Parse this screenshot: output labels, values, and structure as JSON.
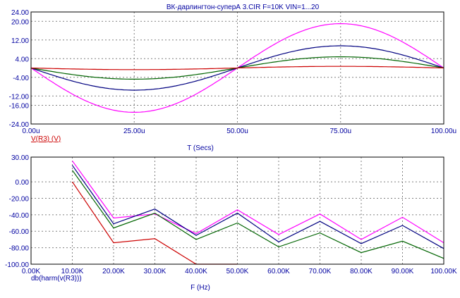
{
  "window": {
    "title": "ВК-дарлингтон-суперА 3.CIR F=10K VIN=1...20"
  },
  "colors": {
    "axis_text": "#0000a0",
    "grid": "#808080",
    "frame": "#000000",
    "trace_label_time": "#cc0000",
    "trace_label_freq": "#0000a0"
  },
  "chart_data": [
    {
      "type": "line",
      "title": "ВК-дарлингтон-суперА 3.CIR F=10K VIN=1...20",
      "xlabel": "T (Secs)",
      "ylabel": "",
      "trace_label": "V(R3) (V)",
      "xlim": [
        0,
        100
      ],
      "ylim": [
        -24,
        24
      ],
      "x_ticks": [
        "0.00u",
        "25.00u",
        "50.00u",
        "75.00u",
        "100.00u"
      ],
      "x_tick_values": [
        0,
        25,
        50,
        75,
        100
      ],
      "y_ticks": [
        "24.00",
        "20.00",
        "12.00",
        "4.00",
        "-4.00",
        "-12.00",
        "-16.00",
        "-24.00"
      ],
      "y_tick_values": [
        24,
        20,
        12,
        4,
        -4,
        -12,
        -16,
        -24
      ],
      "grid": true,
      "series": [
        {
          "color": "#ff00ff",
          "amplitude": 19.0,
          "x_unit": "us"
        },
        {
          "color": "#000080",
          "amplitude": 9.5,
          "x_unit": "us"
        },
        {
          "color": "#006400",
          "amplitude": 4.8,
          "x_unit": "us"
        },
        {
          "color": "#cc0000",
          "amplitude": 0.7,
          "x_unit": "us"
        }
      ]
    },
    {
      "type": "line",
      "title": "",
      "xlabel": "F (Hz)",
      "ylabel": "",
      "trace_label": "db(harm(v(R3)))",
      "xlim": [
        0,
        100
      ],
      "ylim": [
        -100,
        30
      ],
      "x_ticks": [
        "0.00K",
        "10.00K",
        "20.00K",
        "30.00K",
        "40.00K",
        "50.00K",
        "60.00K",
        "70.00K",
        "80.00K",
        "90.00K",
        "100.00K"
      ],
      "x_tick_values": [
        0,
        10,
        20,
        30,
        40,
        50,
        60,
        70,
        80,
        90,
        100
      ],
      "y_ticks": [
        "30.00",
        "0.00",
        "-20.00",
        "-40.00",
        "-60.00",
        "-80.00",
        "-100.00"
      ],
      "y_tick_values": [
        30,
        0,
        -20,
        -40,
        -60,
        -80,
        -100
      ],
      "grid": true,
      "series": [
        {
          "color": "#ff00ff",
          "x": [
            10,
            20,
            30,
            40,
            50,
            60,
            70,
            80,
            90,
            100
          ],
          "values": [
            25.5,
            -44,
            -39,
            -63,
            -34,
            -64,
            -39,
            -70,
            -43,
            -74
          ]
        },
        {
          "color": "#000080",
          "x": [
            10,
            20,
            30,
            40,
            50,
            60,
            70,
            80,
            90,
            100
          ],
          "values": [
            20,
            -51,
            -33,
            -65,
            -38,
            -73,
            -48,
            -75,
            -53,
            -81
          ]
        },
        {
          "color": "#006400",
          "x": [
            10,
            20,
            30,
            40,
            50,
            60,
            70,
            80,
            90,
            100
          ],
          "values": [
            14,
            -56,
            -38,
            -70,
            -50,
            -79,
            -62,
            -86,
            -72,
            -93
          ]
        },
        {
          "color": "#cc0000",
          "x": [
            10,
            20,
            30,
            40,
            50
          ],
          "values": [
            0,
            -74,
            -69,
            -100,
            -100
          ]
        }
      ]
    }
  ]
}
